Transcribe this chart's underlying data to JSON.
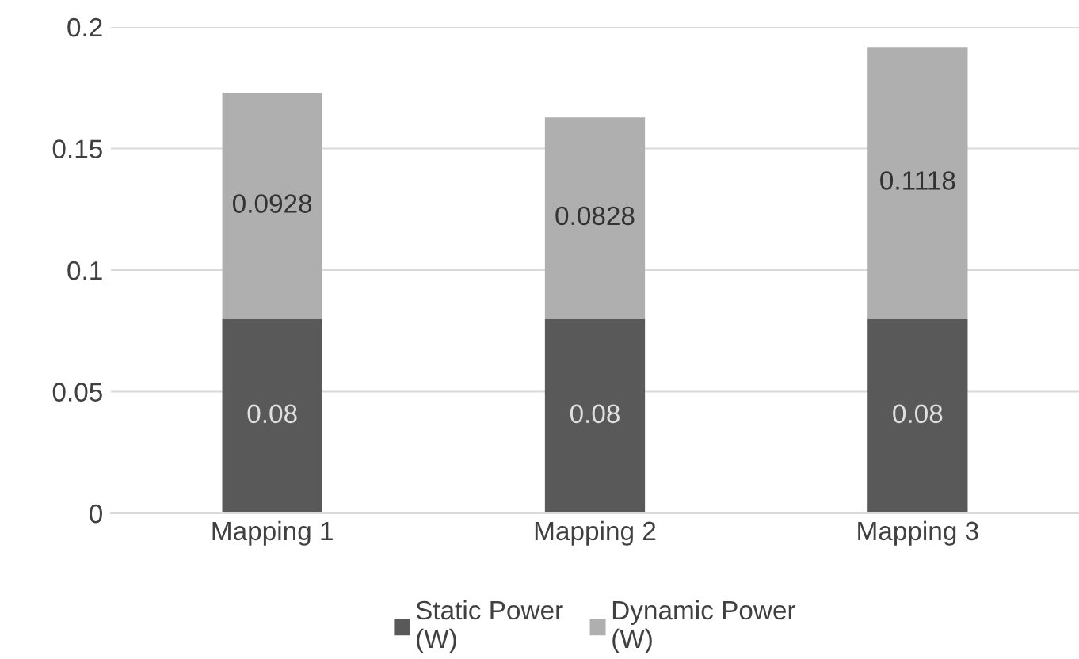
{
  "chart_data": {
    "type": "bar",
    "stacked": true,
    "categories": [
      "Mapping 1",
      "Mapping 2",
      "Mapping 3"
    ],
    "series": [
      {
        "name": "Static Power\n(W)",
        "color": "#595959",
        "values": [
          0.08,
          0.08,
          0.08
        ]
      },
      {
        "name": "Dynamic Power\n(W)",
        "color": "#afafaf",
        "values": [
          0.0928,
          0.0828,
          0.1118
        ]
      }
    ],
    "ylim": [
      0,
      0.2
    ],
    "yticks": [
      {
        "value": 0,
        "label": "0"
      },
      0.05,
      0.1,
      0.15,
      0.2
    ],
    "grid": "y",
    "legend": "bottom",
    "data_labels": true
  }
}
